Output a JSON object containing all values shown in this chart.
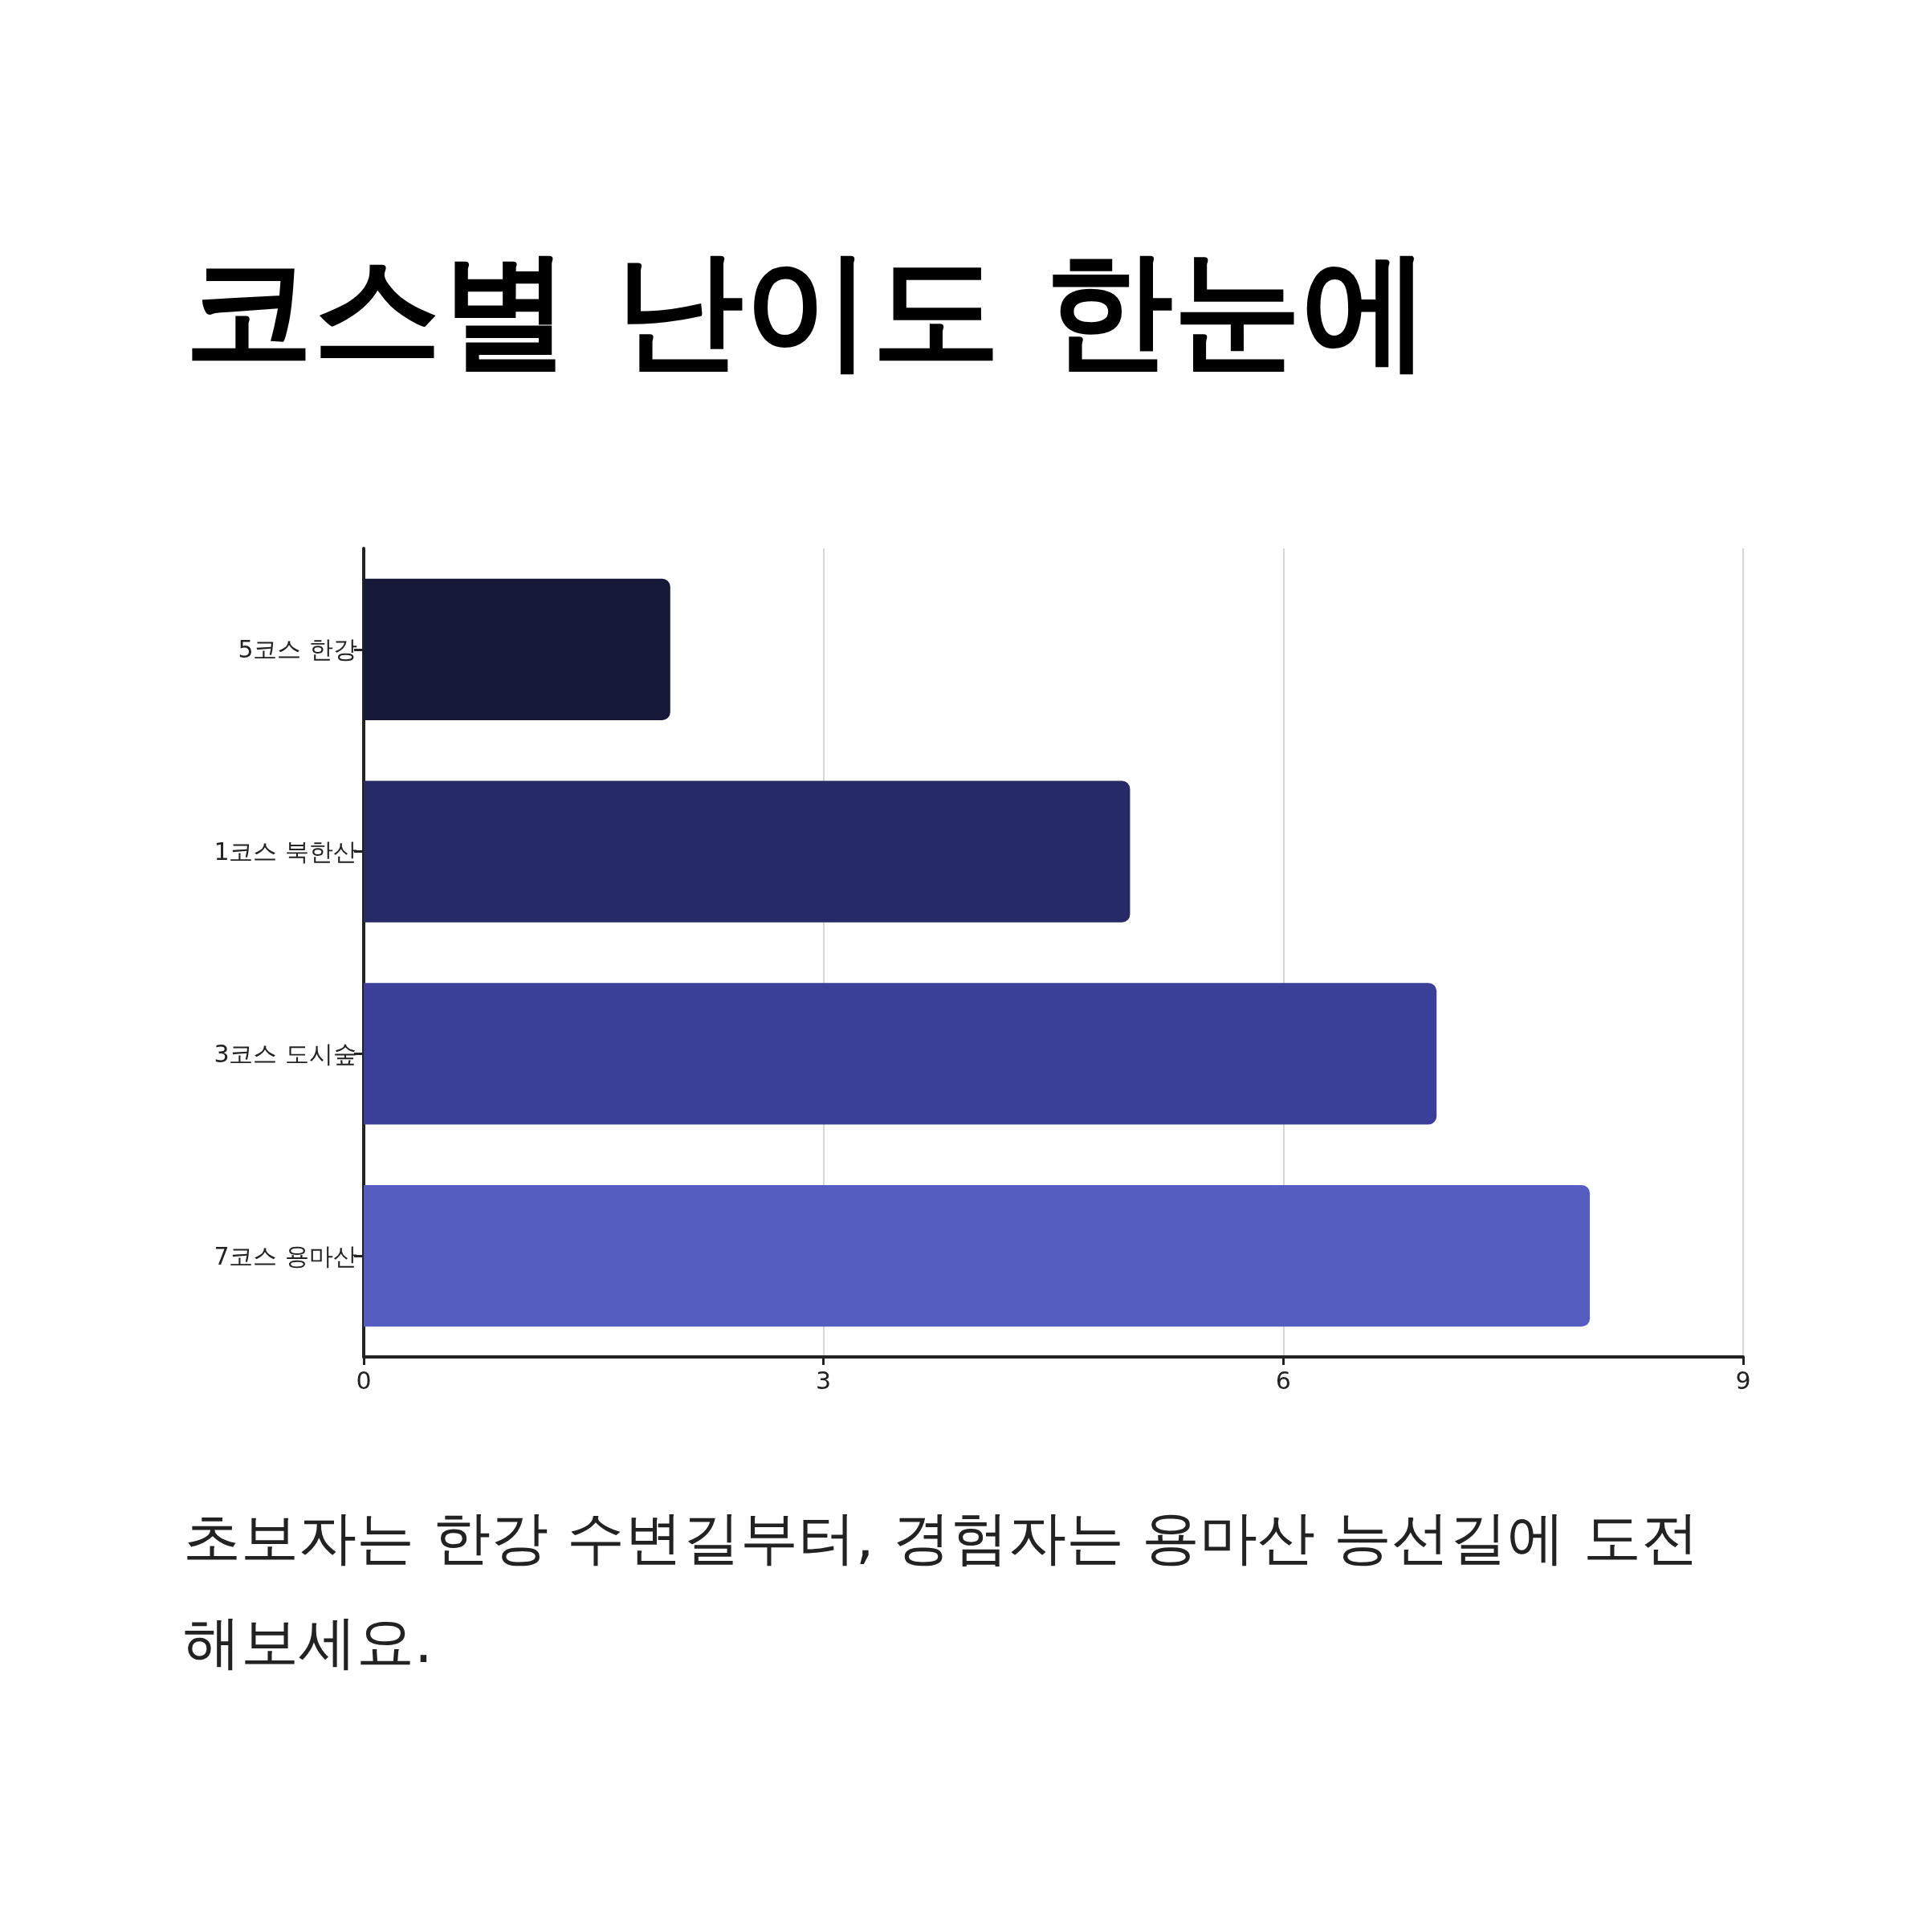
{
  "chart_data": {
    "type": "bar",
    "orientation": "horizontal",
    "title": "코스별 난이도 한눈에",
    "categories": [
      "5코스 한강",
      "1코스 북한산",
      "3코스 도시숲",
      "7코스 용마산"
    ],
    "values": [
      2,
      5,
      7,
      8
    ],
    "colors": [
      "#161838",
      "#262a66",
      "#3b3f99",
      "#555ec0"
    ],
    "xlim": [
      0,
      9
    ],
    "xticks": [
      0,
      3,
      6,
      9
    ],
    "grid": "x",
    "annotations": [
      "초보자는 한강 수변길부터, 경험자는 용마산 능선길에 도전해보세요."
    ]
  }
}
